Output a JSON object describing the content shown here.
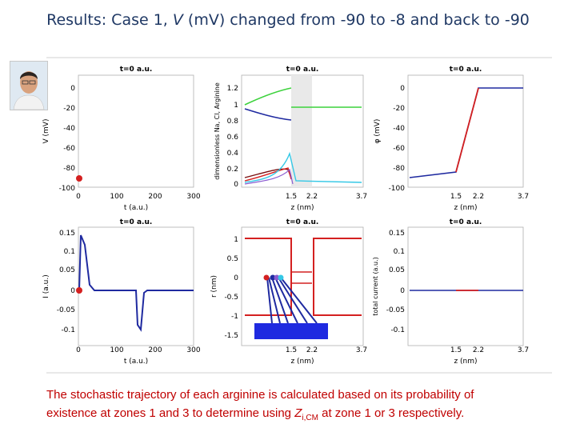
{
  "slide": {
    "title_prefix": "Results: Case 1, ",
    "title_var": "V",
    "title_suffix": " (mV) changed from -90 to -8 and back to -90",
    "caption_line1": "The stochastic trajectory of each arginine is calculated based on its probability of",
    "caption_line2_a": "existence at zones 1 and 3 to determine using ",
    "caption_sym": "Z",
    "caption_sub": "i,CM",
    "caption_line2_b": " at zone 1 or 3 respectively."
  },
  "panels": {
    "p1": {
      "title": "t=0 a.u.",
      "ylabel": "V (mV)",
      "xlabel": "t (a.u.)",
      "yticks": [
        "0",
        "-20",
        "-40",
        "-60",
        "-80",
        "-100"
      ],
      "xticks": [
        "0",
        "100",
        "200",
        "300"
      ]
    },
    "p2": {
      "title": "t=0 a.u.",
      "ylabel": "dimensionless Na, Cl, Arginine",
      "xlabel": "z (nm)",
      "yticks": [
        "1.2",
        "1",
        "0.8",
        "0.6",
        "0.4",
        "0.2",
        "0"
      ],
      "xticks": [
        "1.5",
        "2.2",
        "3.7"
      ]
    },
    "p3": {
      "title": "t=0 a.u.",
      "ylabel": "φ (mV)",
      "xlabel": "z (nm)",
      "yticks": [
        "0",
        "-20",
        "-40",
        "-60",
        "-80",
        "-100"
      ],
      "xticks": [
        "1.5",
        "2.2",
        "3.7"
      ]
    },
    "p4": {
      "title": "t=0 a.u.",
      "ylabel": "I (a.u.)",
      "xlabel": "t (a.u.)",
      "yticks": [
        "0.15",
        "0.1",
        "0.05",
        "0",
        "-0.05",
        "-0.1"
      ],
      "xticks": [
        "0",
        "100",
        "200",
        "300"
      ]
    },
    "p5": {
      "title": "t=0 a.u.",
      "ylabel": "r (nm)",
      "xlabel": "z (nm)",
      "yticks": [
        "1",
        "0.5",
        "0",
        "-0.5",
        "-1",
        "-1.5"
      ],
      "xticks": [
        "1.5",
        "2.2",
        "3.7"
      ]
    },
    "p6": {
      "title": "t=0 a.u.",
      "ylabel": "total current (a.u.)",
      "xlabel": "z (nm)",
      "yticks": [
        "0.15",
        "0.1",
        "0.05",
        "0",
        "-0.05",
        "-0.1"
      ],
      "xticks": [
        "1.5",
        "2.2",
        "3.7"
      ]
    }
  },
  "colors": {
    "title": "#1f3864",
    "caption": "#c00000",
    "blue": "#1f2aa0",
    "red": "#d42020",
    "green": "#3cd23c"
  }
}
